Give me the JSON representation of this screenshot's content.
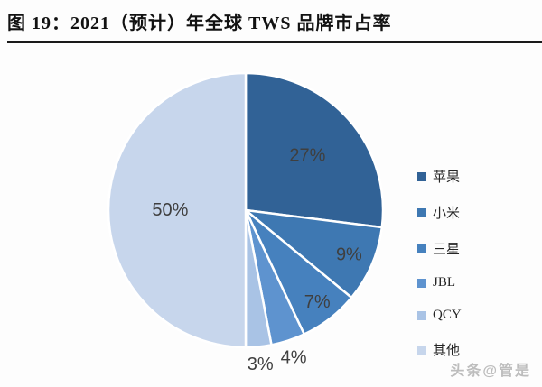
{
  "header": {
    "title": "图 19：2021（预计）年全球 TWS 品牌市占率"
  },
  "watermark": "头条@管是",
  "chart_data": {
    "type": "pie",
    "title": "2021（预计）年全球 TWS 品牌市占率",
    "unit": "percent",
    "start_angle_deg": 0,
    "direction": "clockwise",
    "legend_position": "right",
    "separator_color": "#ffffff",
    "label_color": "#3f3f3f",
    "slices": [
      {
        "id": "apple",
        "label": "苹果",
        "value": 27,
        "pct_label": "27%",
        "color": "#316296",
        "label_pos": "inside",
        "label_r": 0.6
      },
      {
        "id": "xiaomi",
        "label": "小米",
        "value": 9,
        "pct_label": "9%",
        "color": "#3E78B2",
        "label_pos": "inside",
        "label_r": 0.82
      },
      {
        "id": "samsung",
        "label": "三星",
        "value": 7,
        "pct_label": "7%",
        "color": "#4681BE",
        "label_pos": "inside",
        "label_r": 0.85
      },
      {
        "id": "jbl",
        "label": "JBL",
        "value": 4,
        "pct_label": "4%",
        "color": "#5E93CF",
        "label_pos": "outside",
        "label_r": 1.13
      },
      {
        "id": "qcy",
        "label": "QCY",
        "value": 3,
        "pct_label": "3%",
        "color": "#A9C3E5",
        "label_pos": "outside",
        "label_r": 1.13
      },
      {
        "id": "others",
        "label": "其他",
        "value": 50,
        "pct_label": "50%",
        "color": "#C7D6EC",
        "label_pos": "inside",
        "label_r": 0.55
      }
    ]
  }
}
